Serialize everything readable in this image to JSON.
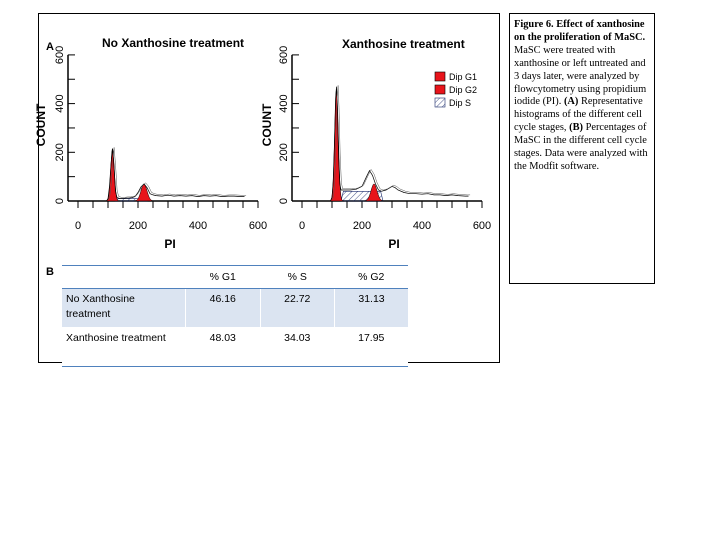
{
  "panel_labels": {
    "a": "A",
    "b": "B"
  },
  "charts": [
    {
      "title": "No Xanthosine treatment",
      "x_label": "PI",
      "y_label": "COUNT",
      "x_ticks": [
        "0",
        "200",
        "400",
        "600"
      ],
      "y_ticks": [
        "0",
        "200",
        "400",
        "600"
      ]
    },
    {
      "title": "Xanthosine treatment",
      "x_label": "PI",
      "y_label": "COUNT",
      "x_ticks": [
        "0",
        "200",
        "400",
        "600"
      ],
      "y_ticks": [
        "0",
        "200",
        "400",
        "600"
      ]
    }
  ],
  "legend": [
    {
      "label": "Dip G1",
      "style": "solid",
      "color": "#e8141b"
    },
    {
      "label": "Dip G2",
      "style": "solid",
      "color": "#e8141b"
    },
    {
      "label": "Dip S",
      "style": "hatched",
      "color": "#1a2a6c"
    }
  ],
  "chart_data": [
    {
      "type": "area",
      "title": "No Xanthosine treatment",
      "xlabel": "PI",
      "ylabel": "COUNT",
      "xlim": [
        0,
        600
      ],
      "ylim": [
        0,
        600
      ],
      "series": [
        {
          "name": "Dip G1",
          "peak_x": 115,
          "peak_y": 215
        },
        {
          "name": "Dip G2",
          "peak_x": 220,
          "peak_y": 70
        },
        {
          "name": "Dip S",
          "range": [
            125,
            230
          ]
        }
      ],
      "histogram_outline": [
        [
          95,
          0
        ],
        [
          100,
          10
        ],
        [
          105,
          60
        ],
        [
          110,
          150
        ],
        [
          115,
          215
        ],
        [
          120,
          140
        ],
        [
          125,
          40
        ],
        [
          130,
          14
        ],
        [
          140,
          10
        ],
        [
          150,
          10
        ],
        [
          160,
          12
        ],
        [
          170,
          12
        ],
        [
          180,
          14
        ],
        [
          190,
          18
        ],
        [
          200,
          35
        ],
        [
          210,
          58
        ],
        [
          220,
          70
        ],
        [
          230,
          55
        ],
        [
          240,
          30
        ],
        [
          250,
          25
        ],
        [
          260,
          22
        ],
        [
          280,
          20
        ],
        [
          300,
          24
        ],
        [
          320,
          20
        ],
        [
          340,
          22
        ],
        [
          360,
          20
        ],
        [
          380,
          22
        ],
        [
          400,
          18
        ],
        [
          420,
          22
        ],
        [
          440,
          20
        ],
        [
          460,
          22
        ],
        [
          480,
          18
        ],
        [
          500,
          20
        ],
        [
          520,
          20
        ],
        [
          545,
          18
        ],
        [
          555,
          18
        ]
      ]
    },
    {
      "type": "area",
      "title": "Xanthosine treatment",
      "xlabel": "PI",
      "ylabel": "COUNT",
      "xlim": [
        0,
        600
      ],
      "ylim": [
        0,
        600
      ],
      "series": [
        {
          "name": "Dip G1",
          "peak_x": 115,
          "peak_y": 460
        },
        {
          "name": "Dip G2",
          "peak_x": 240,
          "peak_y": 70
        },
        {
          "name": "Dip S",
          "range": [
            130,
            270
          ],
          "level": 40
        }
      ],
      "histogram_outline": [
        [
          95,
          0
        ],
        [
          100,
          15
        ],
        [
          104,
          80
        ],
        [
          108,
          230
        ],
        [
          112,
          420
        ],
        [
          115,
          470
        ],
        [
          118,
          380
        ],
        [
          122,
          180
        ],
        [
          126,
          70
        ],
        [
          130,
          45
        ],
        [
          140,
          45
        ],
        [
          160,
          45
        ],
        [
          180,
          48
        ],
        [
          200,
          60
        ],
        [
          215,
          100
        ],
        [
          225,
          125
        ],
        [
          235,
          105
        ],
        [
          245,
          70
        ],
        [
          255,
          45
        ],
        [
          265,
          40
        ],
        [
          280,
          45
        ],
        [
          300,
          60
        ],
        [
          310,
          55
        ],
        [
          320,
          45
        ],
        [
          340,
          35
        ],
        [
          360,
          30
        ],
        [
          380,
          30
        ],
        [
          400,
          28
        ],
        [
          420,
          30
        ],
        [
          440,
          25
        ],
        [
          460,
          25
        ],
        [
          480,
          22
        ],
        [
          500,
          25
        ],
        [
          520,
          22
        ],
        [
          545,
          20
        ],
        [
          555,
          20
        ]
      ]
    }
  ],
  "caption": {
    "title": "Figure 6. Effect of xanthosine on the proliferation of MaSC.",
    "line1": " MaSC were treated with xanthosine or left untreated and 3 days later, were analyzed by flowcytometry using propidium iodide (PI). ",
    "a_tag": "(A)",
    "a_text": " Representative histograms of the different cell cycle stages, ",
    "b_tag": "(B)",
    "b_text": " Percentages of MaSC in the different cell cycle stages. Data were analyzed with the Modfit software."
  },
  "table": {
    "headers": [
      "",
      "% G1",
      "% S",
      "% G2"
    ],
    "rows": [
      {
        "label": "No Xanthosine treatment",
        "g1": "46.16",
        "s": "22.72",
        "g2": "31.13"
      },
      {
        "label": "Xanthosine treatment",
        "g1": "48.03",
        "s": "34.03",
        "g2": "17.95"
      }
    ]
  }
}
